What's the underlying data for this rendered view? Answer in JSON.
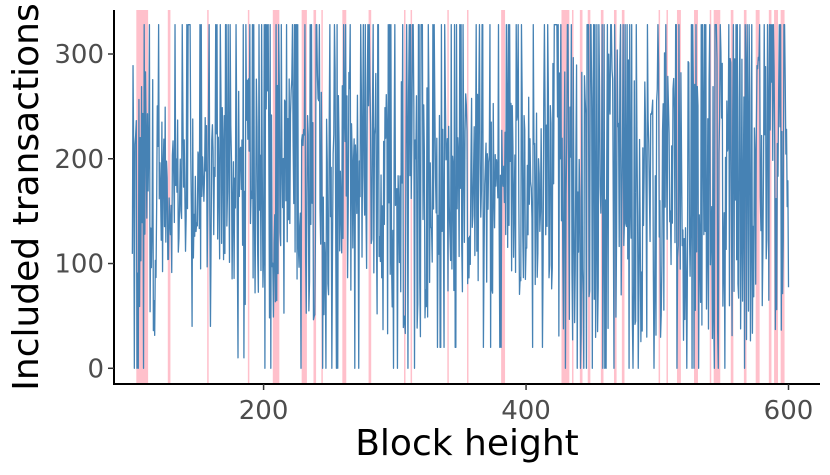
{
  "chart_data": {
    "type": "line",
    "title": "",
    "xlabel": "Block height",
    "ylabel": "Included transactions",
    "xlim": [
      86,
      624
    ],
    "ylim": [
      -15,
      342
    ],
    "xticks": [
      200,
      400,
      600
    ],
    "yticks": [
      0,
      100,
      200,
      300
    ],
    "grid": false,
    "line_color": "#4682b4",
    "highlight_color": "#ffc0cb",
    "max_transactions": 328,
    "series": [
      {
        "x_start": 100,
        "x_end": 600,
        "segments": [
          {
            "x": [
              100,
              120
            ],
            "min": 0,
            "max": 328,
            "center": 160,
            "spread": 130
          },
          {
            "x": [
              120,
              160
            ],
            "min": 40,
            "max": 328,
            "center": 170,
            "spread": 80
          },
          {
            "x": [
              160,
              200
            ],
            "min": 10,
            "max": 328,
            "center": 170,
            "spread": 110
          },
          {
            "x": [
              200,
              280
            ],
            "min": 0,
            "max": 328,
            "center": 165,
            "spread": 120
          },
          {
            "x": [
              280,
              330
            ],
            "min": 0,
            "max": 328,
            "center": 160,
            "spread": 130
          },
          {
            "x": [
              330,
              420
            ],
            "min": 20,
            "max": 328,
            "center": 170,
            "spread": 100
          },
          {
            "x": [
              420,
              600
            ],
            "min": 0,
            "max": 328,
            "center": 165,
            "spread": 140
          }
        ]
      }
    ],
    "highlight_spans": [
      [
        103,
        112
      ],
      [
        127,
        129
      ],
      [
        157,
        158
      ],
      [
        188,
        189
      ],
      [
        207,
        212
      ],
      [
        229,
        233
      ],
      [
        238,
        240
      ],
      [
        244,
        245
      ],
      [
        260,
        263
      ],
      [
        280,
        282
      ],
      [
        307,
        308
      ],
      [
        312,
        313
      ],
      [
        340,
        341
      ],
      [
        355,
        356
      ],
      [
        381,
        384
      ],
      [
        427,
        433
      ],
      [
        435,
        436
      ],
      [
        441,
        443
      ],
      [
        447,
        449
      ],
      [
        457,
        459
      ],
      [
        467,
        469
      ],
      [
        473,
        475
      ],
      [
        501,
        502
      ],
      [
        507,
        508
      ],
      [
        515,
        518
      ],
      [
        528,
        531
      ],
      [
        540,
        541
      ],
      [
        543,
        548
      ],
      [
        556,
        558
      ],
      [
        566,
        568
      ],
      [
        575,
        578
      ],
      [
        585,
        587
      ],
      [
        589,
        592
      ],
      [
        594,
        597
      ]
    ]
  }
}
